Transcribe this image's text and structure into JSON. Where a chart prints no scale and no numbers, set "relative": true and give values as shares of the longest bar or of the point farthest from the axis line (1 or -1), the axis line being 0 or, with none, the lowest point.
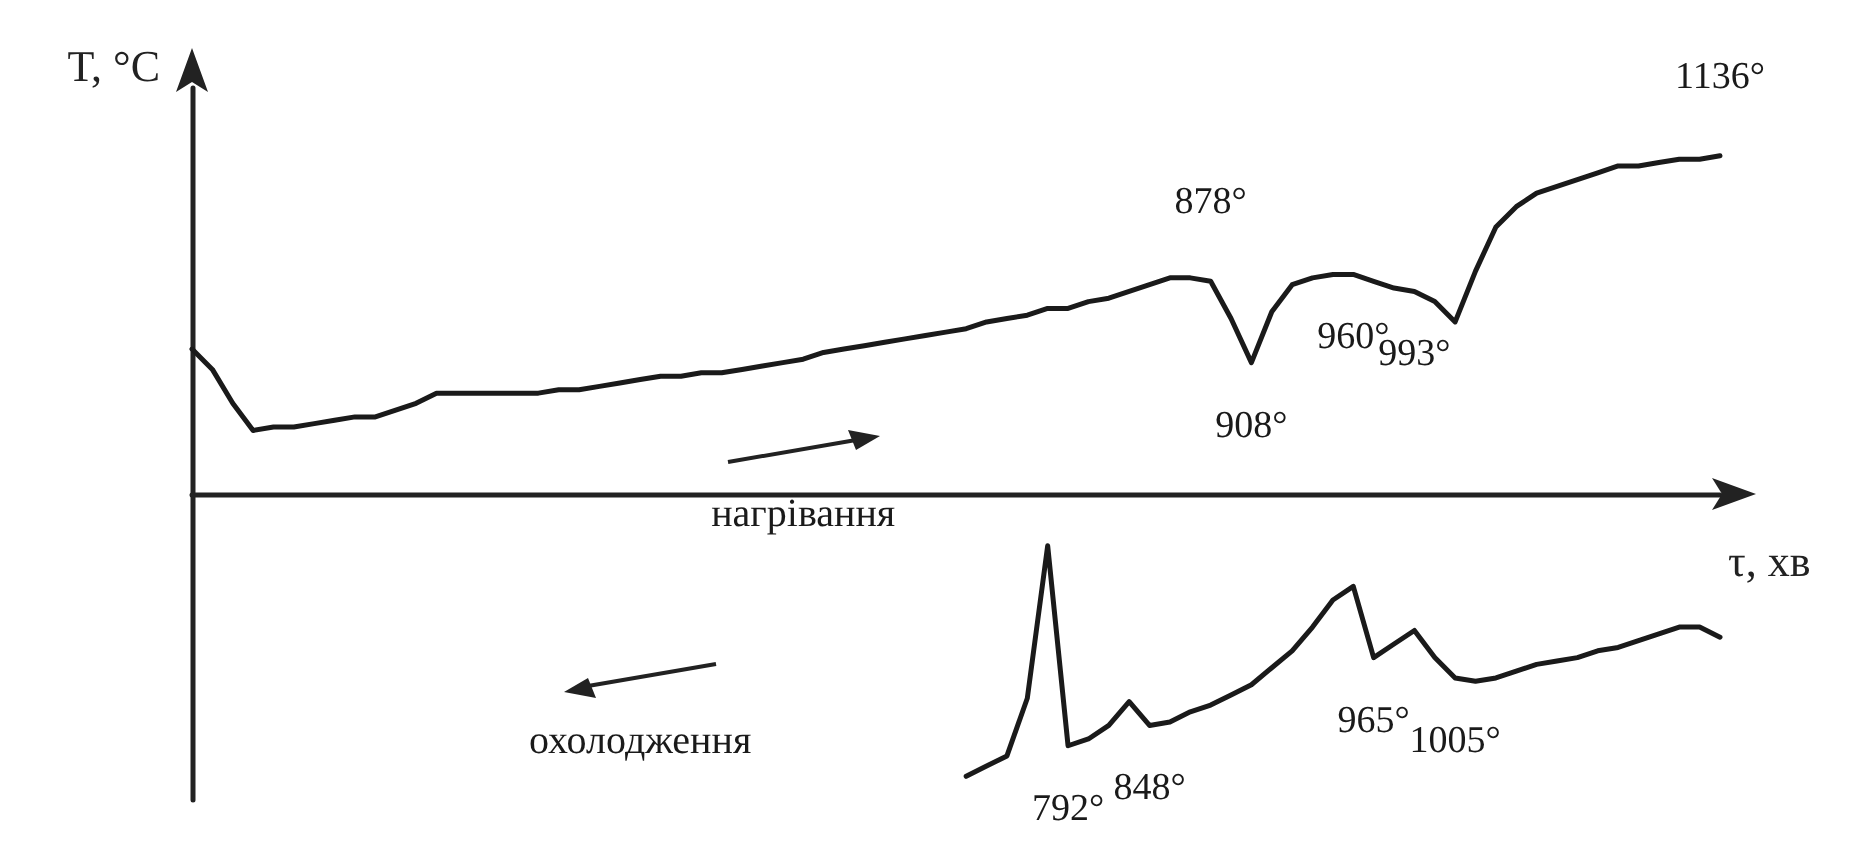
{
  "chart_data": {
    "type": "line",
    "relative": true,
    "xlabel": "τ, хв",
    "ylabel": "T, °C",
    "grid": false,
    "legend": "left",
    "marker": "none",
    "line_style": "solid",
    "annotations": [
      "878°",
      "908°",
      "960°",
      "993°",
      "1136°",
      "792°",
      "848°",
      "965°",
      "1005°"
    ],
    "categories": [
      null,
      null,
      null,
      null,
      null,
      null,
      null,
      null,
      null,
      null,
      null,
      null,
      null,
      null,
      null,
      null,
      null,
      null,
      null,
      null,
      null,
      null,
      null,
      null,
      null,
      null,
      null,
      null,
      null,
      null,
      null,
      null,
      null,
      null,
      null,
      null,
      null,
      null,
      null,
      null,
      null,
      null,
      null,
      null,
      null,
      null,
      null,
      null,
      null,
      null,
      null,
      null,
      null,
      null,
      null,
      null,
      null,
      null,
      null,
      null,
      null,
      null,
      null,
      null,
      null,
      null,
      null,
      null,
      null,
      null,
      null,
      null,
      null,
      null,
      null,
      null
    ],
    "series": [
      {
        "name": "нагрівання",
        "color": "#1a1a1a",
        "values": [
          0.43,
          0.37,
          0.27,
          0.19,
          0.2,
          0.2,
          0.21,
          0.22,
          0.23,
          0.23,
          0.25,
          0.27,
          0.3,
          0.3,
          0.3,
          0.3,
          0.3,
          0.3,
          0.31,
          0.31,
          0.32,
          0.33,
          0.34,
          0.35,
          0.35,
          0.36,
          0.36,
          0.37,
          0.38,
          0.39,
          0.4,
          0.42,
          0.43,
          0.44,
          0.45,
          0.46,
          0.47,
          0.48,
          0.49,
          0.51,
          0.52,
          0.53,
          0.55,
          0.55,
          0.57,
          0.58,
          0.6,
          0.62,
          0.64,
          0.64,
          0.63,
          0.52,
          0.39,
          0.54,
          0.62,
          0.64,
          0.65,
          0.65,
          0.63,
          0.61,
          0.6,
          0.57,
          0.51,
          0.66,
          0.79,
          0.85,
          0.89,
          0.91,
          0.93,
          0.95,
          0.97,
          0.97,
          0.98,
          0.99,
          0.99,
          1
        ]
      },
      {
        "name": "охолодження",
        "color": "#1a1a1a",
        "values": [
          null,
          null,
          null,
          null,
          null,
          null,
          null,
          null,
          null,
          null,
          null,
          null,
          null,
          null,
          null,
          null,
          null,
          null,
          null,
          null,
          null,
          null,
          null,
          null,
          null,
          null,
          null,
          null,
          null,
          null,
          null,
          null,
          null,
          null,
          null,
          null,
          null,
          null,
          -0.83,
          -0.8,
          -0.77,
          -0.6,
          -0.15,
          -0.74,
          -0.72,
          -0.68,
          -0.61,
          -0.68,
          -0.67,
          -0.64,
          -0.62,
          -0.59,
          -0.56,
          -0.51,
          -0.46,
          -0.39,
          -0.31,
          -0.27,
          -0.48,
          -0.44,
          -0.4,
          -0.48,
          -0.54,
          -0.55,
          -0.54,
          -0.52,
          -0.5,
          -0.49,
          -0.48,
          -0.46,
          -0.45,
          -0.43,
          -0.41,
          -0.39,
          -0.39,
          -0.42
        ]
      }
    ]
  }
}
